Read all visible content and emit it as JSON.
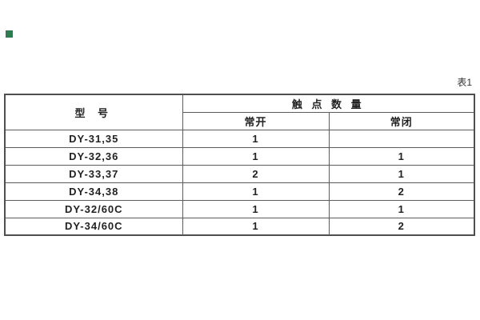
{
  "decor": {
    "green_marker_color": "#2a7d4f"
  },
  "caption": {
    "label": "表1"
  },
  "table": {
    "header": {
      "model": "型 号",
      "group": "触 点 数 量",
      "open": "常开",
      "closed": "常闭"
    },
    "rows": [
      {
        "model": "DY-31,35",
        "open": "1",
        "closed": ""
      },
      {
        "model": "DY-32,36",
        "open": "1",
        "closed": "1"
      },
      {
        "model": "DY-33,37",
        "open": "2",
        "closed": "1"
      },
      {
        "model": "DY-34,38",
        "open": "1",
        "closed": "2"
      },
      {
        "model": "DY-32/60C",
        "open": "1",
        "closed": "1"
      },
      {
        "model": "DY-34/60C",
        "open": "1",
        "closed": "2"
      }
    ]
  }
}
